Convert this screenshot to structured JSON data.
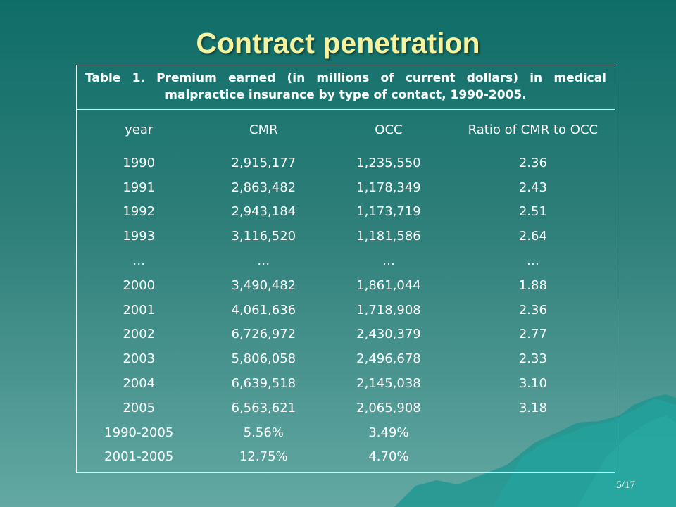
{
  "slide": {
    "title": "Contract penetration",
    "page_number": "5/17"
  },
  "table": {
    "caption": "Table 1. Premium earned (in millions of current dollars) in medical malpractice insurance by type of contact, 1990-2005.",
    "headers": [
      "year",
      "CMR",
      "OCC",
      "Ratio of CMR to OCC"
    ],
    "rows": [
      [
        "1990",
        "2,915,177",
        "1,235,550",
        "2.36"
      ],
      [
        "1991",
        "2,863,482",
        "1,178,349",
        "2.43"
      ],
      [
        "1992",
        "2,943,184",
        "1,173,719",
        "2.51"
      ],
      [
        "1993",
        "3,116,520",
        "1,181,586",
        "2.64"
      ],
      [
        "…",
        "…",
        "…",
        "…"
      ],
      [
        "2000",
        "3,490,482",
        "1,861,044",
        "1.88"
      ],
      [
        "2001",
        "4,061,636",
        "1,718,908",
        "2.36"
      ],
      [
        "2002",
        "6,726,972",
        "2,430,379",
        "2.77"
      ],
      [
        "2003",
        "5,806,058",
        "2,496,678",
        "2.33"
      ],
      [
        "2004",
        "6,639,518",
        "2,145,038",
        "3.10"
      ],
      [
        "2005",
        "6,563,621",
        "2,065,908",
        "3.18"
      ],
      [
        "1990-2005",
        "5.56%",
        "3.49%",
        ""
      ],
      [
        "2001-2005",
        "12.75%",
        "4.70%",
        ""
      ]
    ]
  },
  "colors": {
    "title": "#f5f2a0",
    "text": "#ffffff",
    "background_top": "#0f6d68",
    "background_bottom": "#63a8a3",
    "mountain": "#1f9a93"
  }
}
